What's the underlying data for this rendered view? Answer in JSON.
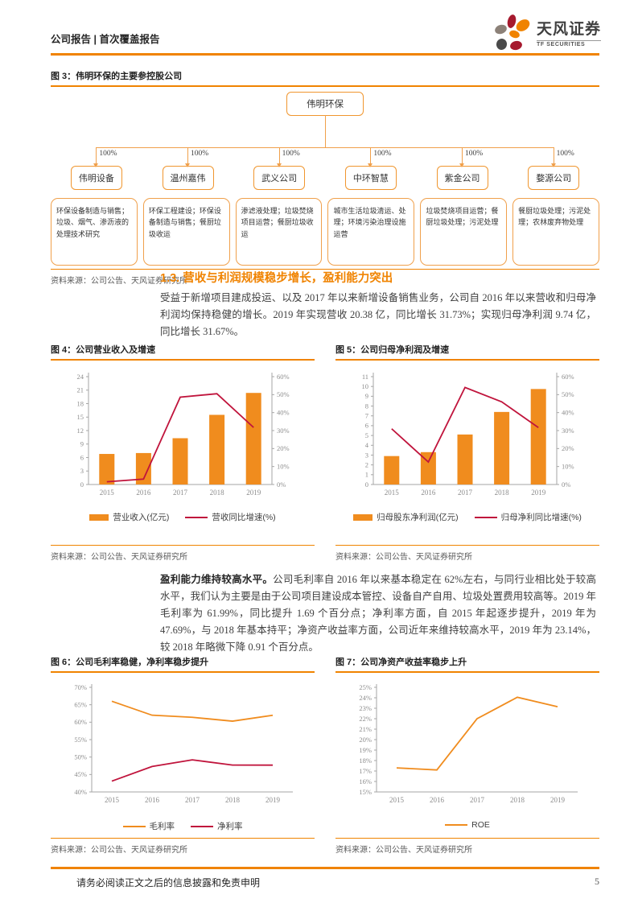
{
  "header": {
    "left_title": "公司报告 | 首次覆盖报告",
    "logo": {
      "name": "天风证券",
      "sub": "TF SECURITIES"
    }
  },
  "figure3": {
    "caption": "图 3：伟明环保的主要参控股公司",
    "root": "伟明环保",
    "ownership": "100%",
    "subsidiaries": [
      {
        "name": "伟明设备",
        "desc": "环保设备制造与销售；垃圾、烟气、渗沥液的处理技术研究"
      },
      {
        "name": "温州嘉伟",
        "desc": "环保工程建设；环保设备制造与销售；餐厨垃圾收运"
      },
      {
        "name": "武义公司",
        "desc": "渗滤液处理；垃圾焚烧项目运营；餐厨垃圾收运"
      },
      {
        "name": "中环智慧",
        "desc": "城市生活垃圾清运、处理；环境污染治理设施运营"
      },
      {
        "name": "紫金公司",
        "desc": "垃圾焚烧项目运营；餐厨垃圾处理；污泥处理"
      },
      {
        "name": "婺源公司",
        "desc": "餐厨垃圾处理；污泥处理；农林废弃物处理"
      }
    ],
    "source": "资料来源：公司公告、天风证券研究所"
  },
  "section": {
    "title": "1.3. 营收与利润规模稳步增长，盈利能力突出",
    "paragraph1": "受益于新增项目建成投运、以及 2017 年以来新增设备销售业务，公司自 2016 年以来营收和归母净利润均保持稳健的增长。2019 年实现营收 20.38 亿，同比增长 31.73%；实现归母净利润 9.74 亿，同比增长 31.67%。",
    "paragraph2_bold": "盈利能力维持较高水平。",
    "paragraph2_rest": "公司毛利率自 2016 年以来基本稳定在 62%左右，与同行业相比处于较高水平，我们认为主要是由于公司项目建设成本管控、设备自产自用、垃圾处置费用较高等。2019 年毛利率为 61.99%，同比提升 1.69 个百分点；净利率方面，自 2015 年起逐步提升，2019 年为 47.69%，与 2018 年基本持平；净资产收益率方面，公司近年来维持较高水平，2019 年为 23.14%，较 2018 年略微下降 0.91 个百分点。"
  },
  "figures": [
    {
      "caption": "图 4：公司营业收入及增速",
      "source": "资料来源：公司公告、天风证券研究所"
    },
    {
      "caption": "图 5：公司归母净利润及增速",
      "source": "资料来源：公司公告、天风证券研究所"
    },
    {
      "caption": "图 6：公司毛利率稳健，净利率稳步提升",
      "source": "资料来源：公司公告、天风证券研究所"
    },
    {
      "caption": "图 7：公司净资产收益率稳步上升",
      "source": "资料来源：公司公告、天风证券研究所"
    }
  ],
  "chart_data": [
    {
      "id": "fig4",
      "type": "bar-line",
      "title": "公司营业收入及增速",
      "categories": [
        "2015",
        "2016",
        "2017",
        "2018",
        "2019"
      ],
      "bar_series": {
        "name": "营业收入(亿元)",
        "values": [
          6.8,
          7.0,
          10.3,
          15.5,
          20.38
        ],
        "color": "#F08C1E"
      },
      "line_series": {
        "name": "营收同比增速(%)",
        "values": [
          1.5,
          3.0,
          48.6,
          50.5,
          31.73
        ],
        "color": "#C0143C"
      },
      "left_axis": {
        "min": 0,
        "max": 24,
        "step": 3,
        "format": "num"
      },
      "right_axis": {
        "min": 0,
        "max": 60,
        "step": 10,
        "format": "pct"
      },
      "legend_position": "bottom",
      "grid": false
    },
    {
      "id": "fig5",
      "type": "bar-line",
      "title": "公司归母净利润及增速",
      "categories": [
        "2015",
        "2016",
        "2017",
        "2018",
        "2019"
      ],
      "bar_series": {
        "name": "归母股东净利润(亿元)",
        "values": [
          2.9,
          3.3,
          5.1,
          7.4,
          9.74
        ],
        "color": "#F08C1E"
      },
      "line_series": {
        "name": "归母净利同比增速(%)",
        "values": [
          31.0,
          12.5,
          54.0,
          46.0,
          31.67
        ],
        "color": "#C0143C"
      },
      "left_axis": {
        "min": 0,
        "max": 11,
        "step": 1,
        "format": "num"
      },
      "right_axis": {
        "min": 0,
        "max": 60,
        "step": 10,
        "format": "pct"
      },
      "legend_position": "bottom",
      "grid": false
    },
    {
      "id": "fig6",
      "type": "line",
      "title": "公司毛利率稳健，净利率稳步提升",
      "categories": [
        "2015",
        "2016",
        "2017",
        "2018",
        "2019"
      ],
      "series": [
        {
          "name": "毛利率",
          "values": [
            66.0,
            62.0,
            61.4,
            60.3,
            61.99
          ],
          "color": "#F08C1E"
        },
        {
          "name": "净利率",
          "values": [
            43.1,
            47.3,
            49.2,
            47.7,
            47.69
          ],
          "color": "#C0143C"
        }
      ],
      "y_axis": {
        "min": 40,
        "max": 70,
        "step": 5,
        "format": "pct"
      },
      "legend_position": "bottom",
      "grid": false
    },
    {
      "id": "fig7",
      "type": "line",
      "title": "公司净资产收益率稳步上升",
      "categories": [
        "2015",
        "2016",
        "2017",
        "2018",
        "2019"
      ],
      "series": [
        {
          "name": "ROE",
          "values": [
            17.3,
            17.1,
            22.0,
            24.05,
            23.14
          ],
          "color": "#F08C1E"
        }
      ],
      "y_axis": {
        "min": 15,
        "max": 25,
        "step": 1,
        "format": "pct"
      },
      "legend_position": "bottom",
      "grid": false
    }
  ],
  "footer": {
    "disclaimer": "请务必阅读正文之后的信息披露和免责申明",
    "page_number": "5"
  },
  "colors": {
    "accent": "#F08300",
    "bar_orange": "#F08C1E",
    "line_red": "#C0143C",
    "axis_gray": "#A6A6A6"
  }
}
